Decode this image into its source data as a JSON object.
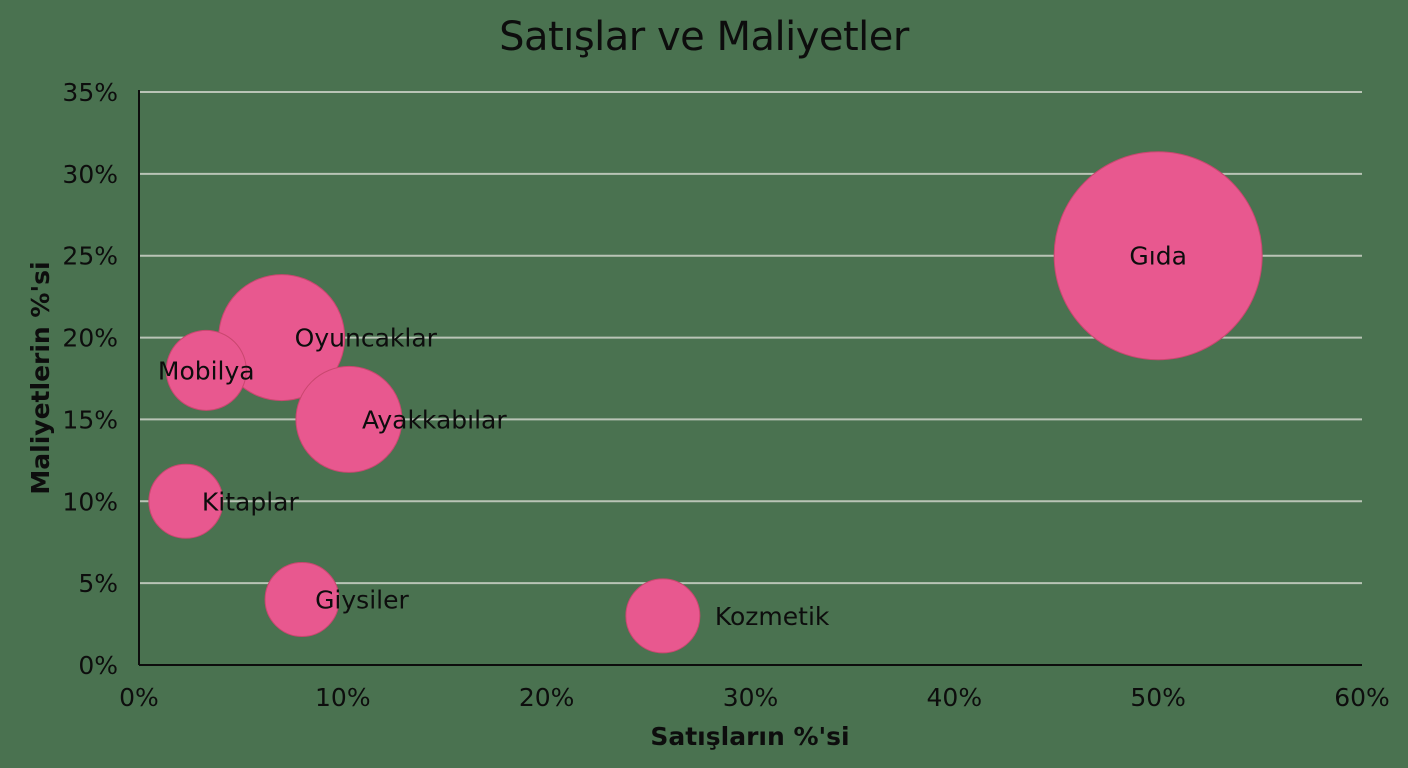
{
  "colors": {
    "background": "#4a7250",
    "bubble": "#e8588f",
    "bubble_stroke": "#c9476f",
    "gridline": "#b9c4b6",
    "axis": "#0d0d0d",
    "text": "#0d0d0d"
  },
  "chart_data": {
    "type": "bubble",
    "title": "Satışlar ve Maliyetler",
    "xlabel": "Satışların %'si",
    "ylabel": "Maliyetlerin %'si",
    "xlim": [
      0,
      60
    ],
    "ylim": [
      0,
      35
    ],
    "x_ticks": [
      "0%",
      "10%",
      "20%",
      "30%",
      "40%",
      "50%",
      "60%"
    ],
    "y_ticks": [
      "0%",
      "5%",
      "10%",
      "15%",
      "20%",
      "25%",
      "30%",
      "35%"
    ],
    "grid": {
      "horizontal": true,
      "vertical": false
    },
    "legend": null,
    "points": [
      {
        "label": "Gıda",
        "x": 50,
        "y": 25,
        "size": 104,
        "label_pos": "center"
      },
      {
        "label": "Oyuncaklar",
        "x": 7,
        "y": 20,
        "size": 63,
        "label_pos": "right"
      },
      {
        "label": "Mobilya",
        "x": 3.3,
        "y": 18,
        "size": 40,
        "label_pos": "center"
      },
      {
        "label": "Ayakkabılar",
        "x": 10.3,
        "y": 15,
        "size": 53,
        "label_pos": "right"
      },
      {
        "label": "Kitaplar",
        "x": 2.3,
        "y": 10,
        "size": 37,
        "label_pos": "right"
      },
      {
        "label": "Giysiler",
        "x": 8,
        "y": 4,
        "size": 37,
        "label_pos": "right"
      },
      {
        "label": "Kozmetik",
        "x": 25.7,
        "y": 3,
        "size": 37,
        "label_pos": "right"
      }
    ]
  }
}
